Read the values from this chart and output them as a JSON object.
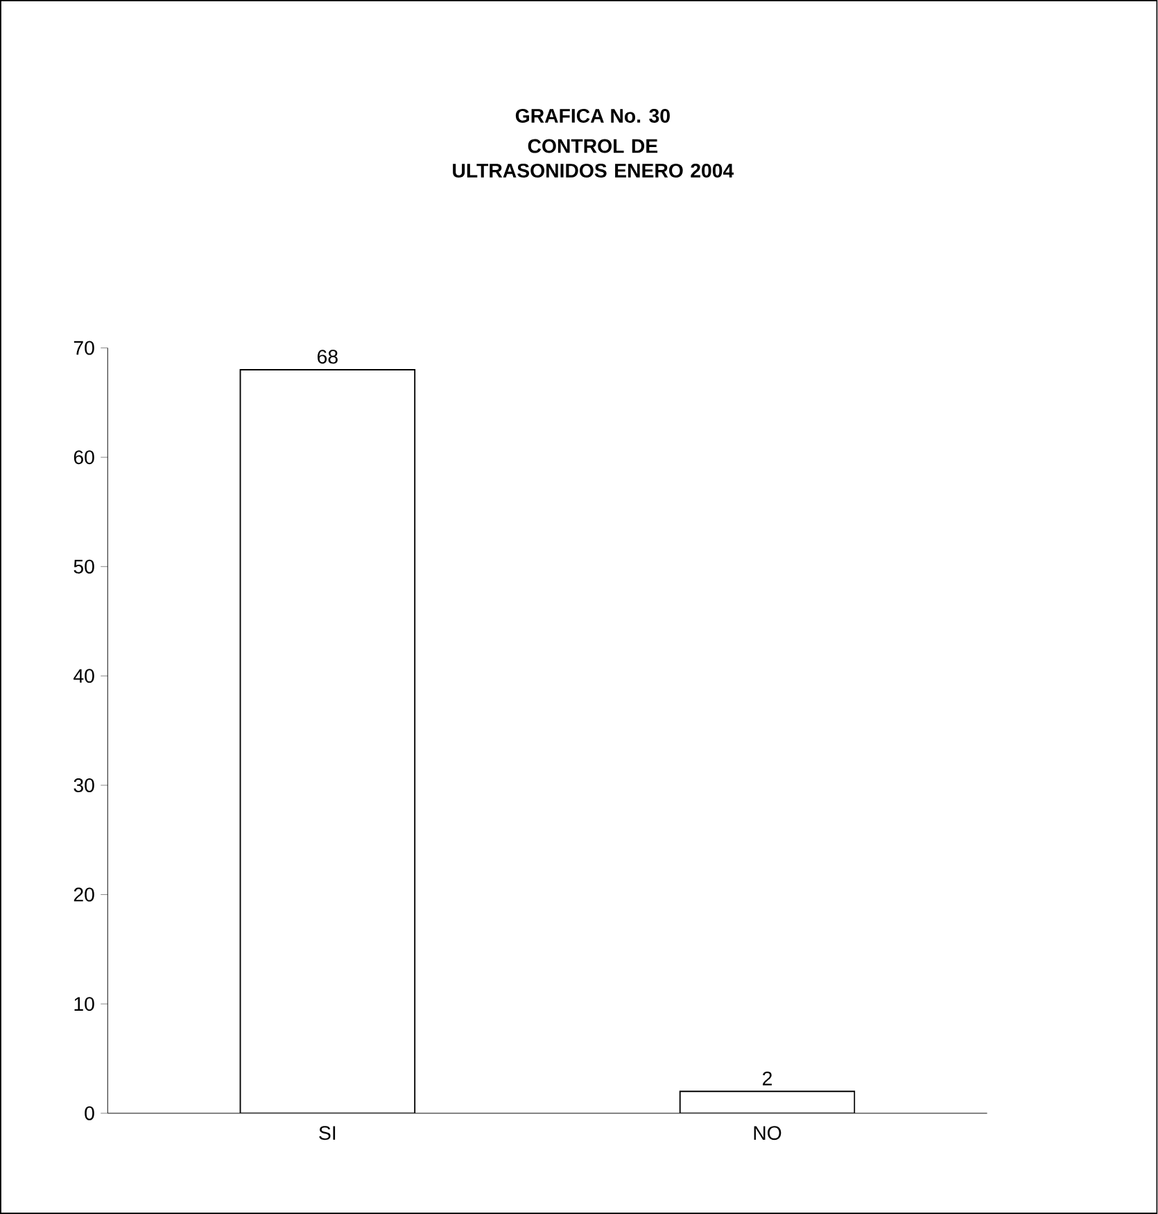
{
  "chart_data": {
    "type": "bar",
    "title": "GRAFICA No. 30",
    "subtitle": "CONTROL DE ULTRASONIDOS ENERO 2004",
    "categories": [
      "SI",
      "NO"
    ],
    "values": [
      68,
      2
    ],
    "color": "#ffffff",
    "ylim": [
      0,
      70
    ],
    "yticks": [
      0,
      10,
      20,
      30,
      40,
      50,
      60,
      70
    ],
    "data_labels": true,
    "grid": false
  }
}
